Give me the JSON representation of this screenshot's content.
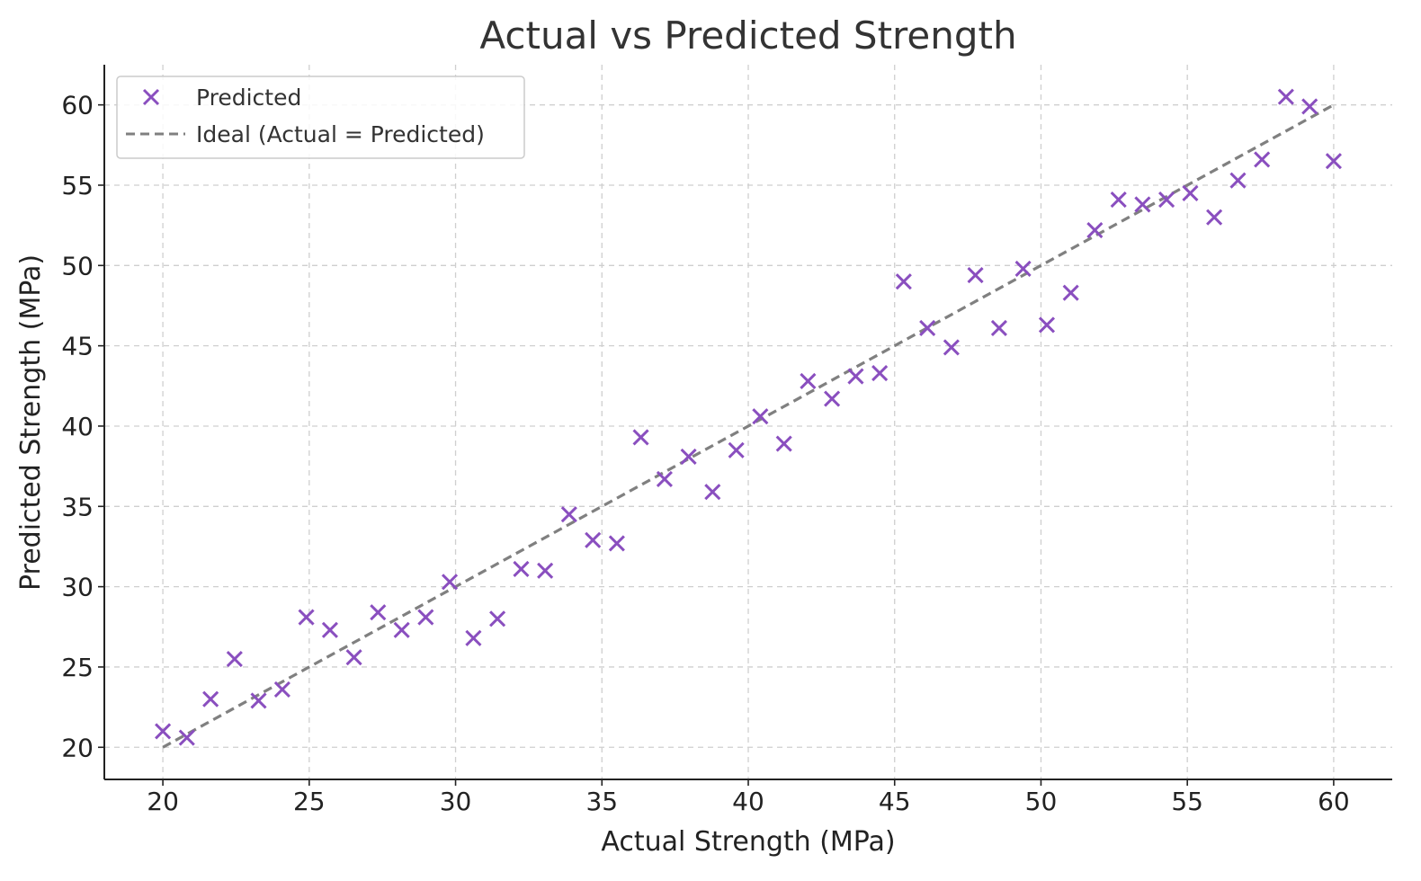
{
  "chart_data": {
    "type": "scatter",
    "title": "Actual vs Predicted Strength",
    "xlabel": "Actual Strength (MPa)",
    "ylabel": "Predicted Strength (MPa)",
    "xlim": [
      18,
      62
    ],
    "ylim": [
      18,
      62.5
    ],
    "xticks": [
      20,
      25,
      30,
      35,
      40,
      45,
      50,
      55,
      60
    ],
    "yticks": [
      20,
      25,
      30,
      35,
      40,
      45,
      50,
      55,
      60
    ],
    "grid": true,
    "legend_position": "top-left",
    "colors": {
      "points": "#8a4fbf",
      "ideal_line": "#808080",
      "grid": "#cfcfcf",
      "axis": "#222222"
    },
    "series": [
      {
        "name": "Predicted",
        "marker": "x",
        "x": [
          20.0,
          20.82,
          21.63,
          22.45,
          23.27,
          24.08,
          24.9,
          25.71,
          26.53,
          27.35,
          28.16,
          28.98,
          29.8,
          30.61,
          31.43,
          32.24,
          33.06,
          33.88,
          34.69,
          35.51,
          36.33,
          37.14,
          37.96,
          38.78,
          39.59,
          40.41,
          41.22,
          42.04,
          42.86,
          43.67,
          44.49,
          45.31,
          46.12,
          46.94,
          47.76,
          48.57,
          49.39,
          50.2,
          51.02,
          51.84,
          52.65,
          53.47,
          54.29,
          55.1,
          55.92,
          56.73,
          57.55,
          58.37,
          59.18,
          60.0
        ],
        "y": [
          21.0,
          20.6,
          23.0,
          25.5,
          22.9,
          23.6,
          28.1,
          27.3,
          25.6,
          28.4,
          27.3,
          28.1,
          30.3,
          26.8,
          28.0,
          31.1,
          31.0,
          34.5,
          32.9,
          32.7,
          39.3,
          36.7,
          38.1,
          35.9,
          38.5,
          40.6,
          38.9,
          42.8,
          41.7,
          43.1,
          43.3,
          49.0,
          46.1,
          44.9,
          49.4,
          46.1,
          49.8,
          46.3,
          48.3,
          52.2,
          54.1,
          53.8,
          54.1,
          54.5,
          53.0,
          55.3,
          56.6,
          60.5,
          59.9,
          56.5
        ]
      },
      {
        "name": "Ideal (Actual = Predicted)",
        "line_style": "dashed",
        "x": [
          20,
          60
        ],
        "y": [
          20,
          60
        ]
      }
    ]
  }
}
